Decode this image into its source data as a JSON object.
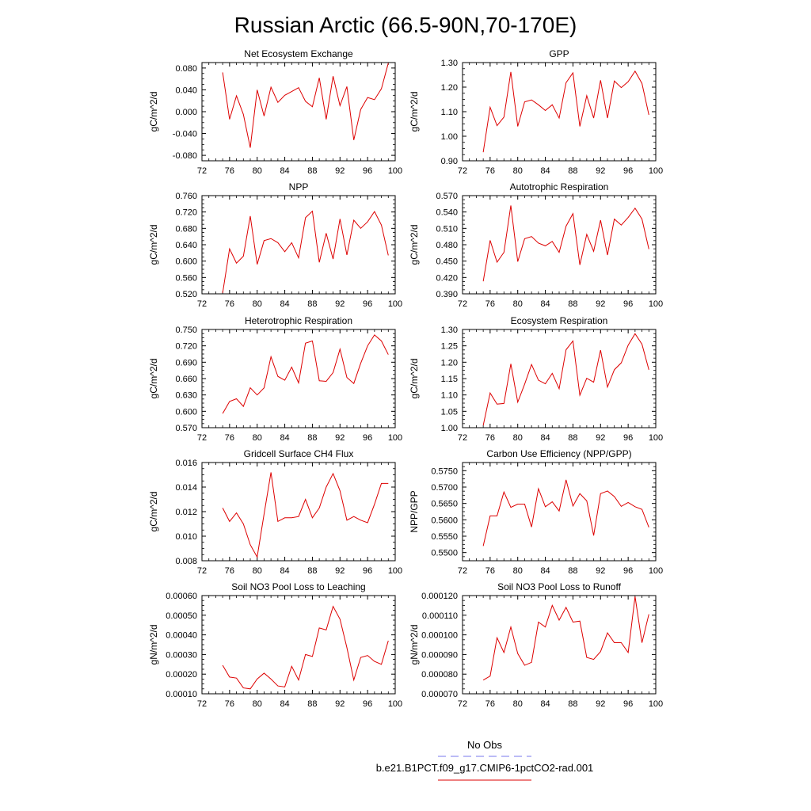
{
  "figure": {
    "title": "Russian Arctic (66.5-90N,70-170E)",
    "legend": {
      "obs_label": "No Obs",
      "obs_color": "#7777ee",
      "model_label": "b.e21.B1PCT.f09_g17.CMIP6-1pctCO2-rad.001",
      "model_color": "#dd0000"
    }
  },
  "chart_data": [
    {
      "type": "line",
      "title": "Net Ecosystem Exchange",
      "ylabel": "gC/m^2/d",
      "xlim": [
        72,
        100
      ],
      "ylim": [
        -0.09,
        0.09
      ],
      "xticks": [
        "72",
        "76",
        "80",
        "84",
        "88",
        "92",
        "96",
        "100"
      ],
      "yticks": [
        "0.080",
        "0.040",
        "0.000",
        "-0.040",
        "-0.080"
      ],
      "x": [
        75,
        76,
        77,
        78,
        79,
        80,
        81,
        82,
        83,
        84,
        85,
        86,
        87,
        88,
        89,
        90,
        91,
        92,
        93,
        94,
        95,
        96,
        97,
        98,
        99
      ],
      "series": [
        {
          "color": "#dd0000",
          "values": [
            0.072,
            -0.014,
            0.029,
            -0.005,
            -0.066,
            0.04,
            -0.008,
            0.045,
            0.017,
            0.03,
            0.037,
            0.044,
            0.019,
            0.009,
            0.062,
            -0.014,
            0.065,
            0.011,
            0.046,
            -0.052,
            0.004,
            0.026,
            0.022,
            0.042,
            0.089
          ]
        }
      ]
    },
    {
      "type": "line",
      "title": "GPP",
      "ylabel": "gC/m^2/d",
      "xlim": [
        72,
        100
      ],
      "ylim": [
        0.9,
        1.3
      ],
      "xticks": [
        "72",
        "76",
        "80",
        "84",
        "88",
        "92",
        "96",
        "100"
      ],
      "yticks": [
        "1.30",
        "1.20",
        "1.10",
        "1.00",
        "0.90"
      ],
      "x": [
        75,
        76,
        77,
        78,
        79,
        80,
        81,
        82,
        83,
        84,
        85,
        86,
        87,
        88,
        89,
        90,
        91,
        92,
        93,
        94,
        95,
        96,
        97,
        98,
        99
      ],
      "series": [
        {
          "color": "#dd0000",
          "values": [
            0.935,
            1.118,
            1.043,
            1.078,
            1.262,
            1.04,
            1.14,
            1.148,
            1.128,
            1.105,
            1.128,
            1.074,
            1.218,
            1.258,
            1.04,
            1.165,
            1.074,
            1.228,
            1.074,
            1.225,
            1.198,
            1.222,
            1.265,
            1.215,
            1.087
          ]
        }
      ]
    },
    {
      "type": "line",
      "title": "NPP",
      "ylabel": "gC/m^2/d",
      "xlim": [
        72,
        100
      ],
      "ylim": [
        0.52,
        0.76
      ],
      "xticks": [
        "72",
        "76",
        "80",
        "84",
        "88",
        "92",
        "96",
        "100"
      ],
      "yticks": [
        "0.760",
        "0.720",
        "0.680",
        "0.640",
        "0.600",
        "0.560",
        "0.520"
      ],
      "x": [
        75,
        76,
        77,
        78,
        79,
        80,
        81,
        82,
        83,
        84,
        85,
        86,
        87,
        88,
        89,
        90,
        91,
        92,
        93,
        94,
        95,
        96,
        97,
        98,
        99
      ],
      "series": [
        {
          "color": "#dd0000",
          "values": [
            0.522,
            0.63,
            0.595,
            0.612,
            0.71,
            0.592,
            0.65,
            0.655,
            0.645,
            0.623,
            0.645,
            0.608,
            0.706,
            0.722,
            0.597,
            0.668,
            0.605,
            0.703,
            0.615,
            0.7,
            0.68,
            0.696,
            0.721,
            0.688,
            0.614
          ]
        }
      ]
    },
    {
      "type": "line",
      "title": "Autotrophic Respiration",
      "ylabel": "gC/m^2/d",
      "xlim": [
        72,
        100
      ],
      "ylim": [
        0.39,
        0.57
      ],
      "xticks": [
        "72",
        "76",
        "80",
        "84",
        "88",
        "92",
        "96",
        "100"
      ],
      "yticks": [
        "0.570",
        "0.540",
        "0.510",
        "0.480",
        "0.450",
        "0.420",
        "0.390"
      ],
      "x": [
        75,
        76,
        77,
        78,
        79,
        80,
        81,
        82,
        83,
        84,
        85,
        86,
        87,
        88,
        89,
        90,
        91,
        92,
        93,
        94,
        95,
        96,
        97,
        98,
        99
      ],
      "series": [
        {
          "color": "#dd0000",
          "values": [
            0.413,
            0.488,
            0.448,
            0.466,
            0.552,
            0.449,
            0.491,
            0.495,
            0.483,
            0.478,
            0.486,
            0.466,
            0.514,
            0.537,
            0.443,
            0.499,
            0.468,
            0.525,
            0.461,
            0.527,
            0.516,
            0.53,
            0.547,
            0.527,
            0.472
          ]
        }
      ]
    },
    {
      "type": "line",
      "title": "Heterotrophic Respiration",
      "ylabel": "gC/m^2/d",
      "xlim": [
        72,
        100
      ],
      "ylim": [
        0.57,
        0.75
      ],
      "xticks": [
        "72",
        "76",
        "80",
        "84",
        "88",
        "92",
        "96",
        "100"
      ],
      "yticks": [
        "0.750",
        "0.720",
        "0.690",
        "0.660",
        "0.630",
        "0.600",
        "0.570"
      ],
      "x": [
        75,
        76,
        77,
        78,
        79,
        80,
        81,
        82,
        83,
        84,
        85,
        86,
        87,
        88,
        89,
        90,
        91,
        92,
        93,
        94,
        95,
        96,
        97,
        98,
        99
      ],
      "series": [
        {
          "color": "#dd0000",
          "values": [
            0.596,
            0.618,
            0.623,
            0.609,
            0.643,
            0.63,
            0.643,
            0.7,
            0.664,
            0.657,
            0.681,
            0.652,
            0.725,
            0.729,
            0.656,
            0.655,
            0.671,
            0.714,
            0.662,
            0.651,
            0.688,
            0.72,
            0.74,
            0.729,
            0.704
          ]
        }
      ]
    },
    {
      "type": "line",
      "title": "Ecosystem Respiration",
      "ylabel": "gC/m^2/d",
      "xlim": [
        72,
        100
      ],
      "ylim": [
        1.0,
        1.3
      ],
      "xticks": [
        "72",
        "76",
        "80",
        "84",
        "88",
        "92",
        "96",
        "100"
      ],
      "yticks": [
        "1.30",
        "1.25",
        "1.20",
        "1.15",
        "1.10",
        "1.05",
        "1.00"
      ],
      "x": [
        75,
        76,
        77,
        78,
        79,
        80,
        81,
        82,
        83,
        84,
        85,
        86,
        87,
        88,
        89,
        90,
        91,
        92,
        93,
        94,
        95,
        96,
        97,
        98,
        99
      ],
      "series": [
        {
          "color": "#dd0000",
          "values": [
            1.007,
            1.106,
            1.072,
            1.074,
            1.195,
            1.078,
            1.133,
            1.193,
            1.145,
            1.134,
            1.166,
            1.119,
            1.238,
            1.265,
            1.099,
            1.151,
            1.139,
            1.237,
            1.124,
            1.177,
            1.198,
            1.252,
            1.287,
            1.255,
            1.177
          ]
        }
      ]
    },
    {
      "type": "line",
      "title": "Gridcell Surface CH4 Flux",
      "ylabel": "gC/m^2/d",
      "xlim": [
        72,
        100
      ],
      "ylim": [
        0.008,
        0.016
      ],
      "xticks": [
        "72",
        "76",
        "80",
        "84",
        "88",
        "92",
        "96",
        "100"
      ],
      "yticks": [
        "0.016",
        "0.014",
        "0.012",
        "0.010",
        "0.008"
      ],
      "x": [
        75,
        76,
        77,
        78,
        79,
        80,
        81,
        82,
        83,
        84,
        85,
        86,
        87,
        88,
        89,
        90,
        91,
        92,
        93,
        94,
        95,
        96,
        97,
        98,
        99
      ],
      "series": [
        {
          "color": "#dd0000",
          "values": [
            0.0123,
            0.0112,
            0.0119,
            0.011,
            0.0093,
            0.0083,
            0.0118,
            0.0152,
            0.0112,
            0.0115,
            0.0115,
            0.0116,
            0.013,
            0.0115,
            0.0123,
            0.014,
            0.0151,
            0.0137,
            0.0113,
            0.0116,
            0.0113,
            0.0111,
            0.0126,
            0.0143,
            0.0143
          ]
        }
      ]
    },
    {
      "type": "line",
      "title": "Carbon Use Efficiency (NPP/GPP)",
      "ylabel": "NPP/GPP",
      "xlim": [
        72,
        100
      ],
      "ylim": [
        0.5475,
        0.5775
      ],
      "xticks": [
        "72",
        "76",
        "80",
        "84",
        "88",
        "92",
        "96",
        "100"
      ],
      "yticks": [
        "0.5750",
        "0.5700",
        "0.5650",
        "0.5600",
        "0.5550",
        "0.5500"
      ],
      "x": [
        75,
        76,
        77,
        78,
        79,
        80,
        81,
        82,
        83,
        84,
        85,
        86,
        87,
        88,
        89,
        90,
        91,
        92,
        93,
        94,
        95,
        96,
        97,
        98,
        99
      ],
      "series": [
        {
          "color": "#dd0000",
          "values": [
            0.552,
            0.5612,
            0.5612,
            0.5685,
            0.5638,
            0.5648,
            0.5648,
            0.5578,
            0.5695,
            0.564,
            0.5655,
            0.5627,
            0.5722,
            0.5642,
            0.568,
            0.5658,
            0.5552,
            0.568,
            0.5688,
            0.5671,
            0.5641,
            0.5653,
            0.564,
            0.5632,
            0.5577
          ]
        }
      ]
    },
    {
      "type": "line",
      "title": "Soil NO3 Pool Loss to Leaching",
      "ylabel": "gN/m^2/d",
      "xlim": [
        72,
        100
      ],
      "ylim": [
        0.0001,
        0.0006
      ],
      "xticks": [
        "72",
        "76",
        "80",
        "84",
        "88",
        "92",
        "96",
        "100"
      ],
      "yticks": [
        "0.00060",
        "0.00050",
        "0.00040",
        "0.00030",
        "0.00020",
        "0.00010"
      ],
      "x": [
        75,
        76,
        77,
        78,
        79,
        80,
        81,
        82,
        83,
        84,
        85,
        86,
        87,
        88,
        89,
        90,
        91,
        92,
        93,
        94,
        95,
        96,
        97,
        98,
        99
      ],
      "series": [
        {
          "color": "#dd0000",
          "values": [
            0.000245,
            0.000185,
            0.00018,
            0.00013,
            0.000125,
            0.000175,
            0.000205,
            0.000175,
            0.00014,
            0.000135,
            0.00024,
            0.00017,
            0.0003,
            0.00029,
            0.000435,
            0.000425,
            0.000545,
            0.00048,
            0.000335,
            0.00017,
            0.000285,
            0.000295,
            0.000265,
            0.00025,
            0.00037
          ]
        }
      ]
    },
    {
      "type": "line",
      "title": "Soil NO3 Pool Loss to Runoff",
      "ylabel": "gN/m^2/d",
      "xlim": [
        72,
        100
      ],
      "ylim": [
        7e-05,
        0.00012
      ],
      "xticks": [
        "72",
        "76",
        "80",
        "84",
        "88",
        "92",
        "96",
        "100"
      ],
      "yticks": [
        "0.000120",
        "0.000110",
        "0.000100",
        "0.000090",
        "0.000080",
        "0.000070"
      ],
      "x": [
        75,
        76,
        77,
        78,
        79,
        80,
        81,
        82,
        83,
        84,
        85,
        86,
        87,
        88,
        89,
        90,
        91,
        92,
        93,
        94,
        95,
        96,
        97,
        98,
        99
      ],
      "series": [
        {
          "color": "#dd0000",
          "values": [
            7.7e-05,
            7.9e-05,
            9.85e-05,
            9.1e-05,
            0.000104,
            9.05e-05,
            8.45e-05,
            8.6e-05,
            0.0001065,
            0.000104,
            0.000115,
            0.0001075,
            0.000114,
            0.0001065,
            0.000107,
            8.85e-05,
            8.75e-05,
            9.15e-05,
            0.000101,
            9.6e-05,
            9.6e-05,
            9.1e-05,
            0.0001195,
            9.6e-05,
            0.0001105
          ]
        }
      ]
    }
  ]
}
